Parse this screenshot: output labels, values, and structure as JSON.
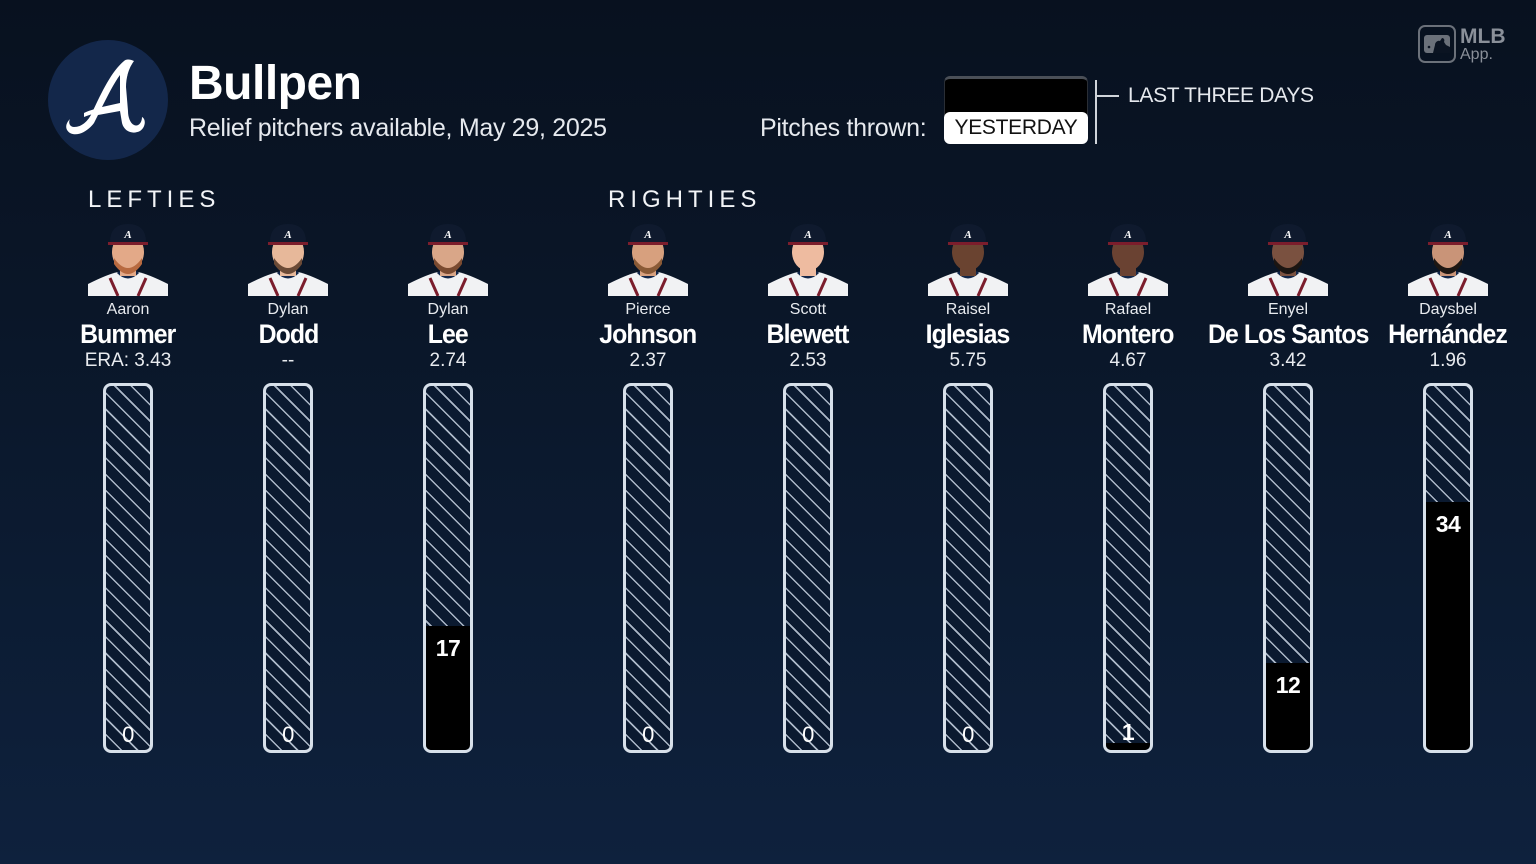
{
  "header": {
    "logo": "braves-a-logo-icon",
    "title": "Bullpen",
    "subtitle": "Relief pitchers available, May 29, 2025"
  },
  "toggle": {
    "label": "Pitches thrown:",
    "options": [
      "YESTERDAY",
      "LAST THREE DAYS"
    ],
    "selected": "YESTERDAY",
    "active_label": "YESTERDAY",
    "other_label": "LAST THREE DAYS"
  },
  "branding": {
    "icon": "mlb-logo-icon",
    "line1": "MLB",
    "line2": "App."
  },
  "groups": {
    "lefties": "LEFTIES",
    "righties": "RIGHTIES"
  },
  "players": [
    {
      "first": "Aaron",
      "last": "Bummer",
      "era": "ERA: 3.43",
      "pitches": 0,
      "pitches_label": "0",
      "group": "lefties"
    },
    {
      "first": "Dylan",
      "last": "Dodd",
      "era": "--",
      "pitches": 0,
      "pitches_label": "0",
      "group": "lefties"
    },
    {
      "first": "Dylan",
      "last": "Lee",
      "era": "2.74",
      "pitches": 17,
      "pitches_label": "17",
      "group": "lefties"
    },
    {
      "first": "Pierce",
      "last": "Johnson",
      "era": "2.37",
      "pitches": 0,
      "pitches_label": "0",
      "group": "righties"
    },
    {
      "first": "Scott",
      "last": "Blewett",
      "era": "2.53",
      "pitches": 0,
      "pitches_label": "0",
      "group": "righties"
    },
    {
      "first": "Raisel",
      "last": "Iglesias",
      "era": "5.75",
      "pitches": 0,
      "pitches_label": "0",
      "group": "righties"
    },
    {
      "first": "Rafael",
      "last": "Montero",
      "era": "4.67",
      "pitches": 1,
      "pitches_label": "1",
      "group": "righties"
    },
    {
      "first": "Enyel",
      "last": "De Los Santos",
      "era": "3.42",
      "pitches": 12,
      "pitches_label": "12",
      "group": "righties"
    },
    {
      "first": "Daysbel",
      "last": "Hernández",
      "era": "1.96",
      "pitches": 34,
      "pitches_label": "34",
      "group": "righties"
    }
  ],
  "colors": {
    "background_top": "#08111f",
    "background_bottom": "#0e213d",
    "bar_fill": "#000000",
    "bar_outline": "#d7e0ea",
    "logo_circle": "#13274a"
  },
  "chart_data": {
    "type": "bar",
    "title": "Bullpen",
    "subtitle": "Relief pitchers available, May 29, 2025",
    "xlabel": "",
    "ylabel": "Pitches thrown (yesterday)",
    "categories": [
      "Aaron Bummer",
      "Dylan Dodd",
      "Dylan Lee",
      "Pierce Johnson",
      "Scott Blewett",
      "Raisel Iglesias",
      "Rafael Montero",
      "Enyel De Los Santos",
      "Daysbel Hernández"
    ],
    "values": [
      0,
      0,
      17,
      0,
      0,
      0,
      1,
      12,
      34
    ],
    "era": [
      "3.43",
      "--",
      "2.74",
      "2.37",
      "2.53",
      "5.75",
      "4.67",
      "3.42",
      "1.96"
    ],
    "groups": {
      "LEFTIES": [
        "Aaron Bummer",
        "Dylan Dodd",
        "Dylan Lee"
      ],
      "RIGHTIES": [
        "Pierce Johnson",
        "Scott Blewett",
        "Raisel Iglesias",
        "Rafael Montero",
        "Enyel De Los Santos",
        "Daysbel Hernández"
      ]
    },
    "ylim": [
      0,
      50
    ],
    "grid": false,
    "legend": "none",
    "filter": "YESTERDAY"
  }
}
